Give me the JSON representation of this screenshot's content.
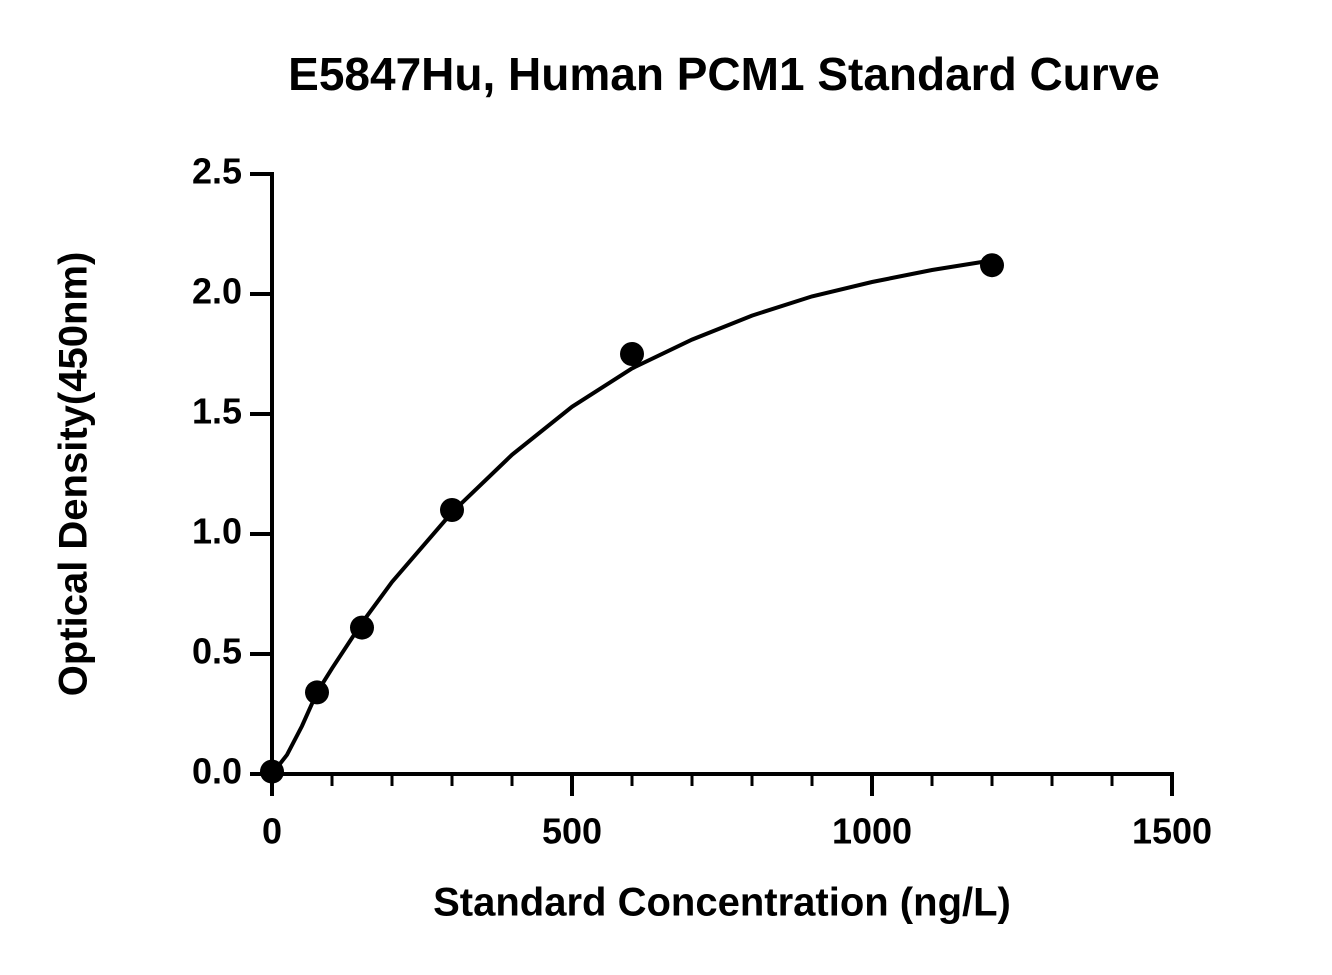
{
  "chart_data": {
    "type": "scatter",
    "title": "E5847Hu, Human PCM1 Standard Curve",
    "x_label": "Standard Concentration (ng/L)",
    "y_label": "Optical Density(450nm)",
    "x": [
      0,
      75,
      150,
      300,
      600,
      1200
    ],
    "values": [
      0.01,
      0.34,
      0.61,
      1.1,
      1.75,
      2.12
    ],
    "color": "#000000",
    "curve": {
      "x": [
        0,
        25,
        50,
        75,
        100,
        150,
        200,
        300,
        400,
        500,
        600,
        700,
        800,
        900,
        1000,
        1100,
        1200
      ],
      "values": [
        0.0,
        0.08,
        0.2,
        0.34,
        0.44,
        0.63,
        0.8,
        1.09,
        1.33,
        1.53,
        1.69,
        1.81,
        1.91,
        1.99,
        2.05,
        2.1,
        2.14
      ]
    },
    "xlim": [
      0,
      1500
    ],
    "ylim": [
      0,
      2.5
    ],
    "xticks": [
      0,
      500,
      1000,
      1500
    ],
    "xminorticks": [
      100,
      200,
      300,
      400,
      600,
      700,
      800,
      900,
      1100,
      1200,
      1300,
      1400
    ],
    "yticks": [
      {
        "value": 0,
        "label": "0.0"
      },
      0.5,
      {
        "value": 1,
        "label": "1.0"
      },
      1.5,
      {
        "value": 2,
        "label": "2.0"
      },
      2.5
    ],
    "grid": false
  }
}
